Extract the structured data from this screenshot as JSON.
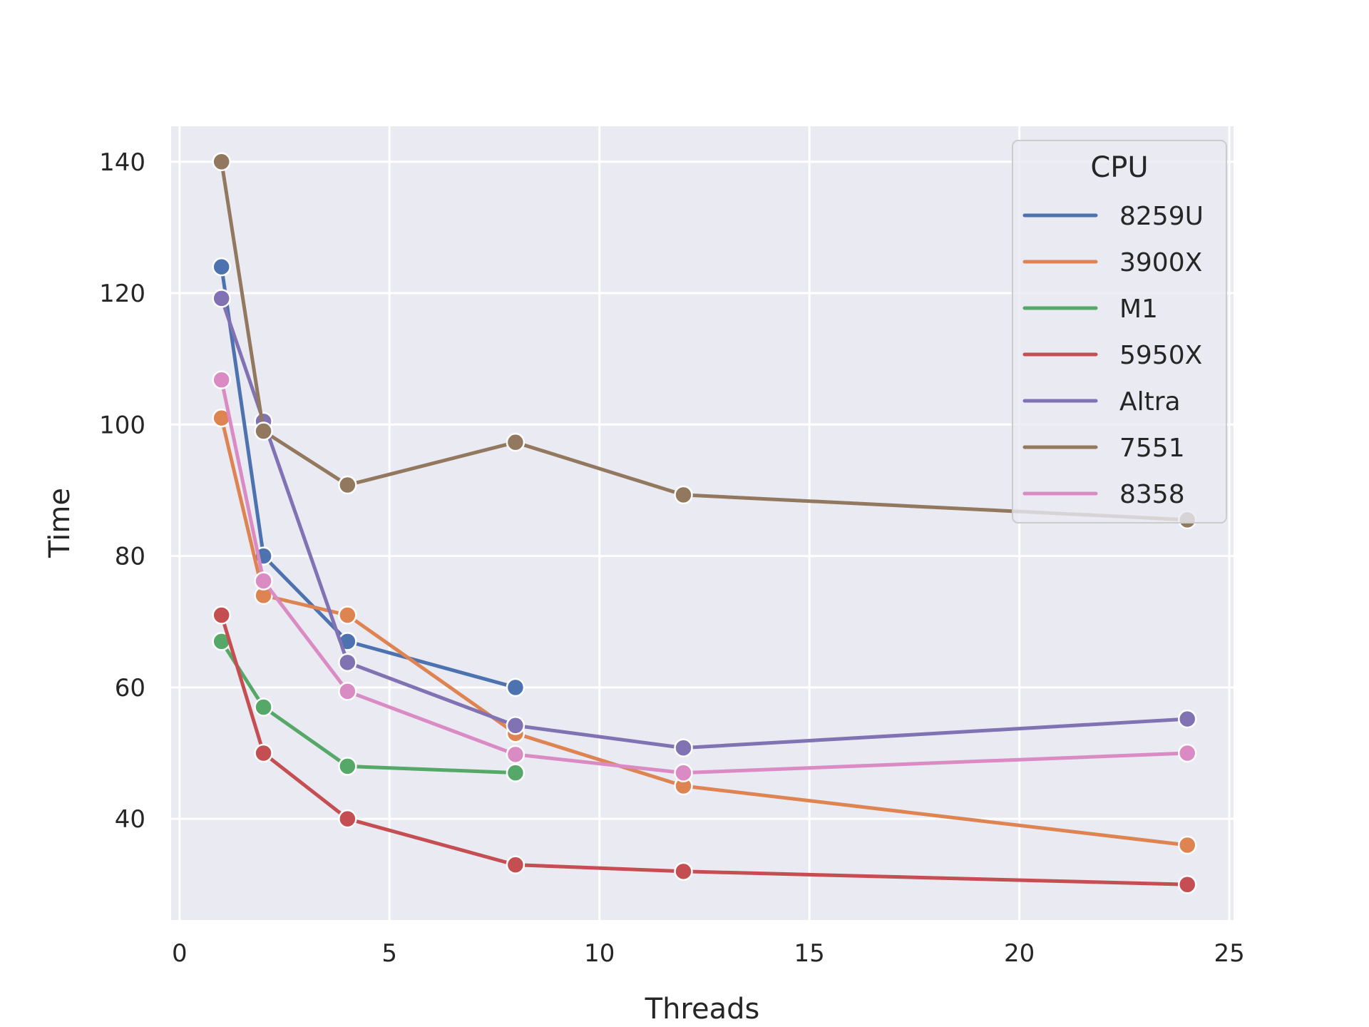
{
  "chart_data": {
    "type": "line",
    "title": "",
    "xlabel": "Threads",
    "ylabel": "Time",
    "xlim": [
      -0.2,
      25.1
    ],
    "ylim": [
      24.6,
      145.4
    ],
    "xticks": [
      0,
      5,
      10,
      15,
      20,
      25
    ],
    "yticks": [
      40,
      60,
      80,
      100,
      120,
      140
    ],
    "grid": true,
    "legend": {
      "title": "CPU",
      "position": "top-right"
    },
    "series": [
      {
        "name": "8259U",
        "color": "#4c72b0",
        "x": [
          1,
          2,
          4,
          8
        ],
        "y": [
          124,
          80,
          67,
          60
        ]
      },
      {
        "name": "3900X",
        "color": "#dd8452",
        "x": [
          1,
          2,
          4,
          8,
          12,
          24
        ],
        "y": [
          101,
          74,
          71,
          53,
          45,
          36
        ]
      },
      {
        "name": "M1",
        "color": "#55a868",
        "x": [
          1,
          2,
          4,
          8
        ],
        "y": [
          67,
          57,
          48,
          47
        ]
      },
      {
        "name": "5950X",
        "color": "#c44e52",
        "x": [
          1,
          2,
          4,
          8,
          12,
          24
        ],
        "y": [
          71,
          50,
          40,
          33,
          32,
          30
        ]
      },
      {
        "name": "Altra",
        "color": "#8172b3",
        "x": [
          1,
          2,
          4,
          8,
          12,
          24
        ],
        "y": [
          119.2,
          100.5,
          63.8,
          54.2,
          50.8,
          55.2
        ]
      },
      {
        "name": "7551",
        "color": "#937860",
        "x": [
          1,
          2,
          4,
          8,
          12,
          24
        ],
        "y": [
          140,
          99,
          90.8,
          97.3,
          89.3,
          85.5
        ]
      },
      {
        "name": "8358",
        "color": "#da8bc3",
        "x": [
          1,
          2,
          4,
          8,
          12,
          24
        ],
        "y": [
          106.8,
          76.2,
          59.4,
          49.8,
          47,
          50
        ]
      }
    ]
  }
}
